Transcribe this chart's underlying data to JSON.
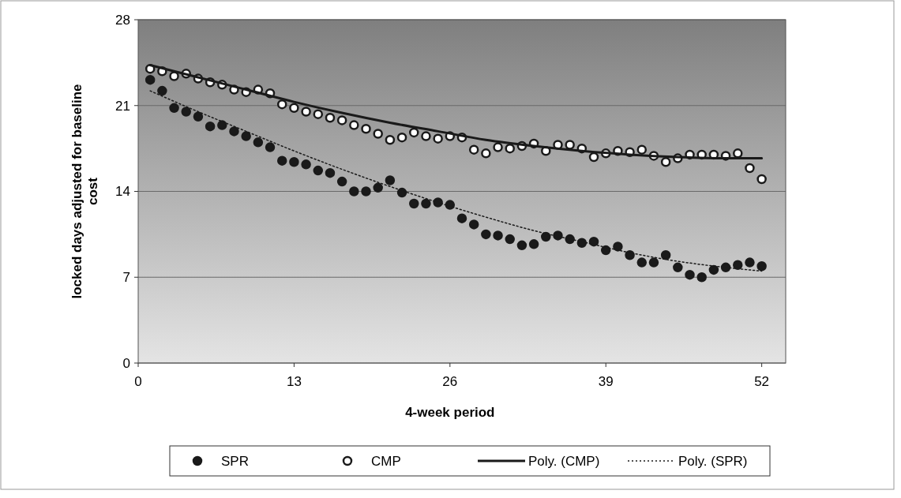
{
  "chart_data": {
    "type": "scatter",
    "xlabel": "4-week period",
    "ylabel": "locked days adjusted for baseline cost",
    "xlim": [
      0,
      54
    ],
    "xticks": [
      0,
      13,
      26,
      39,
      52
    ],
    "ylim": [
      0,
      28
    ],
    "yticks": [
      0,
      7,
      14,
      21,
      28
    ],
    "grid": "y",
    "legend": "bottom",
    "series": [
      {
        "name": "SPR",
        "marker": "circle",
        "color": "#1a1a1a",
        "x": [
          1,
          2,
          3,
          4,
          5,
          6,
          7,
          8,
          9,
          10,
          11,
          12,
          13,
          14,
          15,
          16,
          17,
          18,
          19,
          20,
          21,
          22,
          23,
          24,
          25,
          26,
          27,
          28,
          29,
          30,
          31,
          32,
          33,
          34,
          35,
          36,
          37,
          38,
          39,
          40,
          41,
          42,
          43,
          44,
          45,
          46,
          47,
          48,
          49,
          50,
          51,
          52
        ],
        "values": [
          23.1,
          22.2,
          20.8,
          20.5,
          20.1,
          19.3,
          19.4,
          18.9,
          18.5,
          18.0,
          17.6,
          16.5,
          16.4,
          16.2,
          15.7,
          15.5,
          14.8,
          14.0,
          14.0,
          14.3,
          14.9,
          13.9,
          13.0,
          13.0,
          13.1,
          12.9,
          11.8,
          11.3,
          10.5,
          10.4,
          10.1,
          9.6,
          9.7,
          10.3,
          10.4,
          10.1,
          9.8,
          9.9,
          9.2,
          9.5,
          8.8,
          8.2,
          8.2,
          8.8,
          7.8,
          7.2,
          7.0,
          7.6,
          7.8,
          8.0,
          8.2,
          7.9
        ]
      },
      {
        "name": "CMP",
        "marker": "circle",
        "color": "#ffffff",
        "x": [
          1,
          2,
          3,
          4,
          5,
          6,
          7,
          8,
          9,
          10,
          11,
          12,
          13,
          14,
          15,
          16,
          17,
          18,
          19,
          20,
          21,
          22,
          23,
          24,
          25,
          26,
          27,
          28,
          29,
          30,
          31,
          32,
          33,
          34,
          35,
          36,
          37,
          38,
          39,
          40,
          41,
          42,
          43,
          44,
          45,
          46,
          47,
          48,
          49,
          50,
          51,
          52
        ],
        "values": [
          24.0,
          23.8,
          23.4,
          23.6,
          23.2,
          22.9,
          22.7,
          22.3,
          22.1,
          22.3,
          22.0,
          21.1,
          20.8,
          20.5,
          20.3,
          20.0,
          19.8,
          19.4,
          19.1,
          18.7,
          18.2,
          18.4,
          18.8,
          18.5,
          18.3,
          18.5,
          18.4,
          17.4,
          17.1,
          17.6,
          17.5,
          17.7,
          17.9,
          17.3,
          17.8,
          17.8,
          17.5,
          16.8,
          17.1,
          17.3,
          17.2,
          17.4,
          16.9,
          16.4,
          16.7,
          17.0,
          17.0,
          17.0,
          16.9,
          17.1,
          15.9,
          15.0
        ]
      },
      {
        "name": "Poly. (CMP)",
        "type": "line",
        "line_style": "solid",
        "color": "#1a1a1a",
        "x": [
          1,
          5,
          9,
          13,
          17,
          21,
          25,
          29,
          33,
          37,
          41,
          45,
          49,
          52
        ],
        "values": [
          24.3,
          23.3,
          22.3,
          21.3,
          20.4,
          19.6,
          18.9,
          18.2,
          17.7,
          17.3,
          17.0,
          16.8,
          16.7,
          16.7
        ]
      },
      {
        "name": "Poly. (SPR)",
        "type": "line",
        "line_style": "dotted",
        "color": "#1a1a1a",
        "x": [
          1,
          5,
          9,
          13,
          17,
          21,
          25,
          29,
          33,
          37,
          41,
          45,
          49,
          52
        ],
        "values": [
          22.2,
          20.5,
          18.9,
          17.3,
          15.8,
          14.4,
          13.1,
          11.9,
          10.8,
          9.9,
          9.0,
          8.3,
          7.8,
          7.5
        ]
      }
    ]
  }
}
